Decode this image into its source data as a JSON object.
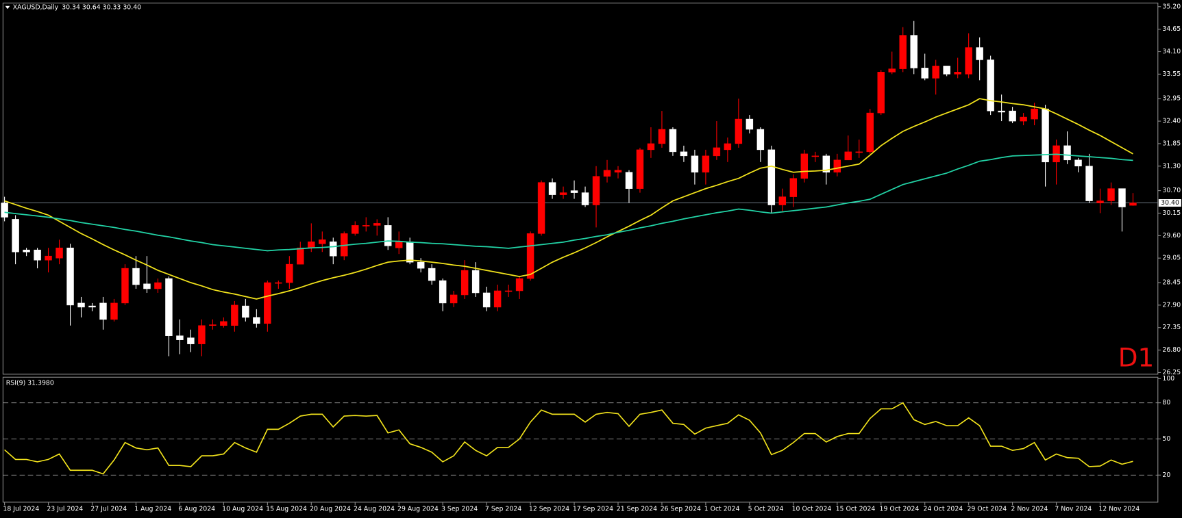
{
  "chart_data": [
    {
      "type": "candlestick",
      "title": "XAGUSD,Daily",
      "ohlc_text": "30.34 30.64 30.33 30.40",
      "watermark": "D1",
      "categories": [
        "18 Jul 2024",
        null,
        null,
        null,
        "23 Jul 2024",
        null,
        null,
        null,
        "27 Jul 2024",
        null,
        null,
        null,
        "1 Aug 2024",
        null,
        null,
        null,
        "6 Aug 2024",
        null,
        null,
        null,
        "10 Aug 2024",
        null,
        null,
        null,
        "15 Aug 2024",
        null,
        null,
        null,
        "20 Aug 2024",
        null,
        null,
        null,
        "24 Aug 2024",
        null,
        null,
        null,
        "29 Aug 2024",
        null,
        null,
        null,
        "3 Sep 2024",
        null,
        null,
        null,
        "7 Sep 2024",
        null,
        null,
        null,
        "12 Sep 2024",
        null,
        null,
        null,
        "17 Sep 2024",
        null,
        null,
        null,
        "21 Sep 2024",
        null,
        null,
        null,
        "26 Sep 2024",
        null,
        null,
        null,
        "1 Oct 2024",
        null,
        null,
        null,
        "5 Oct 2024",
        null,
        null,
        null,
        "10 Oct 2024",
        null,
        null,
        null,
        "15 Oct 2024",
        null,
        null,
        null,
        "19 Oct 2024",
        null,
        null,
        null,
        "24 Oct 2024",
        null,
        null,
        null,
        "29 Oct 2024",
        null,
        null,
        null,
        "2 Nov 2024",
        null,
        null,
        null,
        "7 Nov 2024",
        null,
        null,
        null,
        "12 Nov 2024",
        null,
        null,
        null
      ],
      "open": [
        30.4,
        30.0,
        29.25,
        29.25,
        29.0,
        29.05,
        29.3,
        27.95,
        27.88,
        27.95,
        27.55,
        27.95,
        28.8,
        28.42,
        28.3,
        28.55,
        27.15,
        27.1,
        26.95,
        27.4,
        27.4,
        27.4,
        27.88,
        27.6,
        27.45,
        28.45,
        28.45,
        28.9,
        29.3,
        29.4,
        29.45,
        29.1,
        29.65,
        29.85,
        29.85,
        29.85,
        29.3,
        29.45,
        28.95,
        28.8,
        28.5,
        27.95,
        28.15,
        28.75,
        28.2,
        27.85,
        28.25,
        28.25,
        28.55,
        29.65,
        30.9,
        30.6,
        30.7,
        30.65,
        30.35,
        31.05,
        31.15,
        31.15,
        30.75,
        31.7,
        31.85,
        32.2,
        31.65,
        31.55,
        31.15,
        31.55,
        31.7,
        31.85,
        32.45,
        32.2,
        31.7,
        30.35,
        30.55,
        31.0,
        31.55,
        31.55,
        31.15,
        31.45,
        31.65,
        31.65,
        32.6,
        33.6,
        33.68,
        34.5,
        33.7,
        33.45,
        33.75,
        33.55,
        33.55,
        34.2,
        33.9,
        32.65,
        32.65,
        32.4,
        32.45,
        32.7,
        31.4,
        31.8,
        31.45,
        31.3,
        30.4,
        30.45,
        30.75,
        30.34
      ],
      "high": [
        30.55,
        30.1,
        29.3,
        29.3,
        29.3,
        29.5,
        29.4,
        28.1,
        27.95,
        28.1,
        28.05,
        28.9,
        29.1,
        29.1,
        28.55,
        28.6,
        27.55,
        27.3,
        27.55,
        27.55,
        27.6,
        28.0,
        28.05,
        27.8,
        28.5,
        28.5,
        29.1,
        29.45,
        29.9,
        29.7,
        29.55,
        29.7,
        29.95,
        30.05,
        30.0,
        30.05,
        29.7,
        29.55,
        29.05,
        28.9,
        28.55,
        28.25,
        29.0,
        28.95,
        28.35,
        28.4,
        28.4,
        28.6,
        29.7,
        30.95,
        31.0,
        30.8,
        30.95,
        30.8,
        31.3,
        31.45,
        31.3,
        31.2,
        31.75,
        32.25,
        32.65,
        32.25,
        31.8,
        31.7,
        31.7,
        32.4,
        32.0,
        32.95,
        32.55,
        32.25,
        31.8,
        30.75,
        31.1,
        31.7,
        31.65,
        31.6,
        31.6,
        32.05,
        31.95,
        32.7,
        33.65,
        34.1,
        34.7,
        34.85,
        34.05,
        33.9,
        33.75,
        33.95,
        34.55,
        34.45,
        34.0,
        33.05,
        32.75,
        32.6,
        32.85,
        32.8,
        31.95,
        32.15,
        31.5,
        31.6,
        30.75,
        30.9,
        30.75,
        30.64
      ],
      "low": [
        29.95,
        28.9,
        29.1,
        28.8,
        28.7,
        28.9,
        27.4,
        27.6,
        27.75,
        27.3,
        27.5,
        27.9,
        28.3,
        28.2,
        28.2,
        26.65,
        26.7,
        26.75,
        26.65,
        27.3,
        27.35,
        27.25,
        27.5,
        27.35,
        27.25,
        28.3,
        28.3,
        28.9,
        29.2,
        29.2,
        28.9,
        29.0,
        29.6,
        29.7,
        29.6,
        29.25,
        29.15,
        28.9,
        28.7,
        28.4,
        27.75,
        27.85,
        28.05,
        28.1,
        27.75,
        27.75,
        28.1,
        28.05,
        28.5,
        29.6,
        30.5,
        30.5,
        30.5,
        30.3,
        29.8,
        30.9,
        31.0,
        30.4,
        30.65,
        31.5,
        31.75,
        31.55,
        31.4,
        30.85,
        30.85,
        31.45,
        31.4,
        31.75,
        32.1,
        31.4,
        30.15,
        30.2,
        30.3,
        30.9,
        31.4,
        30.85,
        31.05,
        31.45,
        31.5,
        31.6,
        32.55,
        33.55,
        33.6,
        33.55,
        33.4,
        33.05,
        33.5,
        33.45,
        33.45,
        33.4,
        32.55,
        32.4,
        32.35,
        32.3,
        32.3,
        30.8,
        30.85,
        31.35,
        31.15,
        30.4,
        30.15,
        30.35,
        29.7,
        30.33
      ],
      "close": [
        30.05,
        29.2,
        29.2,
        29.0,
        29.1,
        29.3,
        27.9,
        27.85,
        27.85,
        27.55,
        27.95,
        28.8,
        28.4,
        28.3,
        28.45,
        27.15,
        27.05,
        26.95,
        27.4,
        27.42,
        27.5,
        27.9,
        27.6,
        27.45,
        28.45,
        28.45,
        28.9,
        29.3,
        29.45,
        29.5,
        29.1,
        29.65,
        29.85,
        29.85,
        29.9,
        29.35,
        29.45,
        28.95,
        28.8,
        28.5,
        27.95,
        28.15,
        28.75,
        28.2,
        27.85,
        28.25,
        28.25,
        28.55,
        29.65,
        30.9,
        30.6,
        30.65,
        30.65,
        30.35,
        31.05,
        31.2,
        31.2,
        30.75,
        31.7,
        31.85,
        32.2,
        31.65,
        31.55,
        31.15,
        31.55,
        31.75,
        31.85,
        32.45,
        32.2,
        31.7,
        30.35,
        30.55,
        31.0,
        31.6,
        31.55,
        31.15,
        31.45,
        31.65,
        31.65,
        32.6,
        33.6,
        33.68,
        34.5,
        33.7,
        33.45,
        33.75,
        33.55,
        33.6,
        34.2,
        33.9,
        32.65,
        32.62,
        32.4,
        32.5,
        32.7,
        31.4,
        31.8,
        31.45,
        31.3,
        30.45,
        30.45,
        30.75,
        30.3,
        30.4
      ],
      "up_color": "#ff0000",
      "down_color": "#ffffff",
      "lines": [
        {
          "color": "#f2e31c",
          "values": [
            30.45,
            30.36,
            30.27,
            30.19,
            30.1,
            29.95,
            29.8,
            29.65,
            29.52,
            29.38,
            29.25,
            29.13,
            29.0,
            28.88,
            28.75,
            28.65,
            28.55,
            28.45,
            28.37,
            28.28,
            28.22,
            28.17,
            28.11,
            28.05,
            28.12,
            28.18,
            28.25,
            28.33,
            28.42,
            28.5,
            28.57,
            28.63,
            28.7,
            28.78,
            28.87,
            28.95,
            28.98,
            29.0,
            28.98,
            28.95,
            28.92,
            28.88,
            28.85,
            28.8,
            28.75,
            28.7,
            28.65,
            28.6,
            28.65,
            28.8,
            28.95,
            29.07,
            29.18,
            29.3,
            29.43,
            29.57,
            29.7,
            29.83,
            29.97,
            30.1,
            30.28,
            30.45,
            30.55,
            30.65,
            30.75,
            30.83,
            30.92,
            31.0,
            31.13,
            31.25,
            31.3,
            31.22,
            31.15,
            31.17,
            31.18,
            31.2,
            31.25,
            31.3,
            31.35,
            31.57,
            31.8,
            31.98,
            32.15,
            32.27,
            32.38,
            32.5,
            32.6,
            32.7,
            32.8,
            32.95,
            32.9,
            32.87,
            32.83,
            32.8,
            32.75,
            32.7,
            32.58,
            32.45,
            32.32,
            32.18,
            32.05,
            31.9,
            31.75,
            31.6
          ]
        },
        {
          "color": "#22d3a6",
          "values": [
            30.17,
            30.14,
            30.11,
            30.08,
            30.05,
            30.01,
            29.97,
            29.92,
            29.88,
            29.84,
            29.8,
            29.75,
            29.71,
            29.66,
            29.61,
            29.57,
            29.52,
            29.47,
            29.43,
            29.38,
            29.35,
            29.32,
            29.29,
            29.26,
            29.23,
            29.25,
            29.26,
            29.28,
            29.3,
            29.31,
            29.33,
            29.36,
            29.39,
            29.41,
            29.44,
            29.47,
            29.46,
            29.44,
            29.43,
            29.41,
            29.4,
            29.38,
            29.36,
            29.34,
            29.33,
            29.31,
            29.29,
            29.32,
            29.35,
            29.38,
            29.41,
            29.44,
            29.49,
            29.53,
            29.58,
            29.62,
            29.68,
            29.73,
            29.79,
            29.84,
            29.9,
            29.95,
            30.01,
            30.06,
            30.11,
            30.16,
            30.2,
            30.25,
            30.22,
            30.18,
            30.15,
            30.18,
            30.21,
            30.24,
            30.27,
            30.3,
            30.35,
            30.4,
            30.44,
            30.49,
            30.61,
            30.73,
            30.85,
            30.92,
            30.99,
            31.06,
            31.13,
            31.23,
            31.32,
            31.42,
            31.46,
            31.51,
            31.55,
            31.56,
            31.57,
            31.58,
            31.59,
            31.57,
            31.55,
            31.53,
            31.51,
            31.49,
            31.46,
            31.44
          ]
        }
      ],
      "current_price": {
        "value": 30.4,
        "label": "30.40"
      },
      "ylim": [
        26.21,
        35.29
      ],
      "yticks": [
        {
          "value": 35.2,
          "label": "35.20"
        },
        {
          "value": 34.65,
          "label": "34.65"
        },
        {
          "value": 34.1,
          "label": "34.10"
        },
        {
          "value": 33.55,
          "label": "33.55"
        },
        {
          "value": 32.95,
          "label": "32.95"
        },
        {
          "value": 32.4,
          "label": "32.40"
        },
        {
          "value": 31.85,
          "label": "31.85"
        },
        {
          "value": 31.3,
          "label": "31.30"
        },
        {
          "value": 30.7,
          "label": "30.70"
        },
        {
          "value": 30.15,
          "label": "30.15"
        },
        {
          "value": 29.6,
          "label": "29.60"
        },
        {
          "value": 29.05,
          "label": "29.05"
        },
        {
          "value": 28.45,
          "label": "28.45"
        },
        {
          "value": 27.9,
          "label": "27.90"
        },
        {
          "value": 27.35,
          "label": "27.35"
        },
        {
          "value": 26.8,
          "label": "26.80"
        },
        {
          "value": 26.25,
          "label": "26.25"
        }
      ]
    },
    {
      "type": "line",
      "title": "RSI(9) 31.3980",
      "color": "#f2e31c",
      "values": [
        41,
        33,
        33,
        31,
        33,
        37.5,
        24,
        24,
        24,
        21,
        32.5,
        47,
        42.5,
        41,
        42.5,
        28,
        28,
        27,
        36,
        36,
        37.5,
        47,
        42.5,
        39,
        58,
        58,
        63,
        69,
        70.5,
        70.5,
        60,
        69,
        69.5,
        69,
        69.5,
        55,
        57.5,
        46,
        43,
        39,
        31,
        36,
        47.5,
        40.5,
        36,
        43,
        43,
        50,
        64,
        74,
        70.5,
        70.5,
        70.5,
        64,
        70.5,
        72,
        71,
        60.5,
        70.5,
        72,
        74,
        63,
        62,
        54,
        59,
        61,
        63,
        70,
        65.5,
        55,
        37,
        40.5,
        47,
        54.5,
        54.5,
        47.5,
        52,
        54.5,
        54.5,
        67,
        75,
        75,
        80,
        66,
        62,
        64.5,
        61,
        61,
        67.5,
        61,
        44,
        44,
        40.5,
        42,
        47,
        32.5,
        37.5,
        34.5,
        34,
        27,
        27.5,
        32.5,
        29,
        31.398
      ],
      "ylim": [
        0,
        100
      ],
      "yticks": [
        100,
        80,
        50,
        20
      ],
      "levels": [
        80,
        50,
        20
      ]
    }
  ]
}
